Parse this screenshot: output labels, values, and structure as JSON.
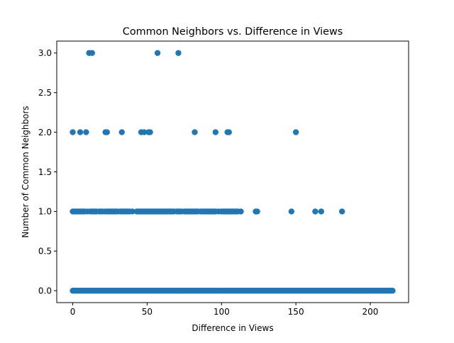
{
  "chart_data": {
    "type": "scatter",
    "title": "Common Neighbors vs. Difference in Views",
    "xlabel": "Difference in Views",
    "ylabel": "Number of Common Neighbors",
    "xlim": [
      -10.75,
      225.75
    ],
    "ylim": [
      -0.15,
      3.15
    ],
    "x_ticks": [
      0,
      50,
      100,
      150,
      200
    ],
    "x_tick_labels": [
      "0",
      "50",
      "100",
      "150",
      "200"
    ],
    "y_ticks": [
      0.0,
      0.5,
      1.0,
      1.5,
      2.0,
      2.5,
      3.0
    ],
    "y_tick_labels": [
      "0.0",
      "0.5",
      "1.0",
      "1.5",
      "2.0",
      "2.5",
      "3.0"
    ],
    "grid": false,
    "legend": "none",
    "marker_color": "#1f77b4",
    "series": [
      {
        "points": {
          "y3": [
            11,
            13,
            57,
            71
          ],
          "y2": [
            0,
            5,
            9,
            22,
            23,
            33,
            46,
            48,
            51,
            52,
            82,
            96,
            104,
            105,
            150
          ],
          "y1": [
            0,
            1,
            2,
            3,
            4,
            5,
            6,
            7,
            8,
            10,
            12,
            13,
            14,
            15,
            16,
            18,
            19,
            20,
            22,
            23,
            24,
            25,
            26,
            27,
            28,
            29,
            30,
            32,
            33,
            34,
            35,
            36,
            37,
            38,
            40,
            43,
            44,
            45,
            46,
            47,
            48,
            49,
            50,
            51,
            52,
            53,
            54,
            55,
            56,
            57,
            58,
            59,
            60,
            61,
            62,
            63,
            64,
            65,
            66,
            67,
            68,
            70,
            71,
            72,
            73,
            75,
            76,
            77,
            78,
            79,
            80,
            81,
            82,
            83,
            84,
            86,
            87,
            88,
            89,
            90,
            91,
            92,
            93,
            94,
            95,
            96,
            98,
            100,
            101,
            102,
            103,
            104,
            105,
            106,
            107,
            108,
            109,
            110,
            111,
            113,
            123,
            124,
            147,
            163,
            167,
            181
          ]
        },
        "y0_range": [
          0,
          215
        ]
      }
    ]
  }
}
